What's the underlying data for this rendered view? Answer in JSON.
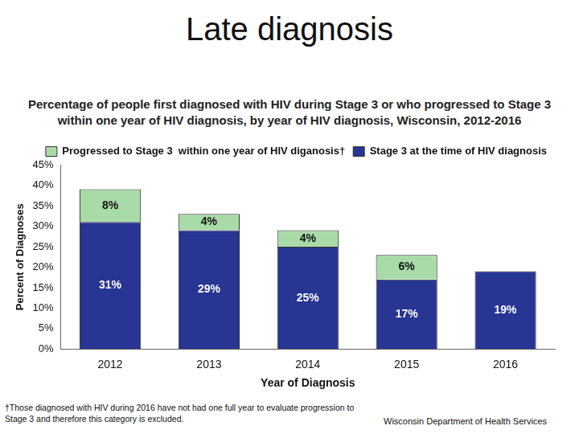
{
  "chart_data": {
    "type": "bar",
    "title": "Late diagnosis",
    "subtitle": "Percentage of people first diagnosed with HIV during Stage 3 or who progressed to Stage 3 within one year of HIV diagnosis, by year of HIV diagnosis, Wisconsin, 2012-2016",
    "x_label": "Year of Diagnosis",
    "y_label": "Percent of Diagnoses",
    "categories": [
      "2012",
      "2013",
      "2014",
      "2015",
      "2016"
    ],
    "series": [
      {
        "name": "Stage 3 at the time of HIV diagnosis",
        "color": "#283593",
        "values": [
          31,
          29,
          25,
          17,
          19
        ],
        "value_labels": [
          "31%",
          "29%",
          "25%",
          "17%",
          "19%"
        ]
      },
      {
        "name": "Progressed to Stage 3  within one year of HIV diganosis†",
        "color": "#a9dba9",
        "values": [
          8,
          4,
          4,
          6,
          null
        ],
        "value_labels": [
          "8%",
          "4%",
          "4%",
          "6%",
          null
        ]
      }
    ],
    "ylim": [
      0,
      45
    ],
    "yticks": [
      {
        "value": 0,
        "label": "0%"
      },
      {
        "value": 5,
        "label": "5%"
      },
      {
        "value": 10,
        "label": "10%"
      },
      {
        "value": 15,
        "label": "15%"
      },
      {
        "value": 20,
        "label": "20%"
      },
      {
        "value": 25,
        "label": "25%"
      },
      {
        "value": 30,
        "label": "30%"
      },
      {
        "value": 35,
        "label": "35%"
      },
      {
        "value": 40,
        "label": "40%"
      },
      {
        "value": 45,
        "label": "45%"
      }
    ],
    "stacked": true,
    "grid": false,
    "legend": "upper right",
    "data_labels": true,
    "footnote": "†Those diagnosed with HIV during 2016 have not had one full year to evaluate progression to Stage 3 and therefore this category is excluded.",
    "source": "Wisconsin Department of Health Services"
  }
}
